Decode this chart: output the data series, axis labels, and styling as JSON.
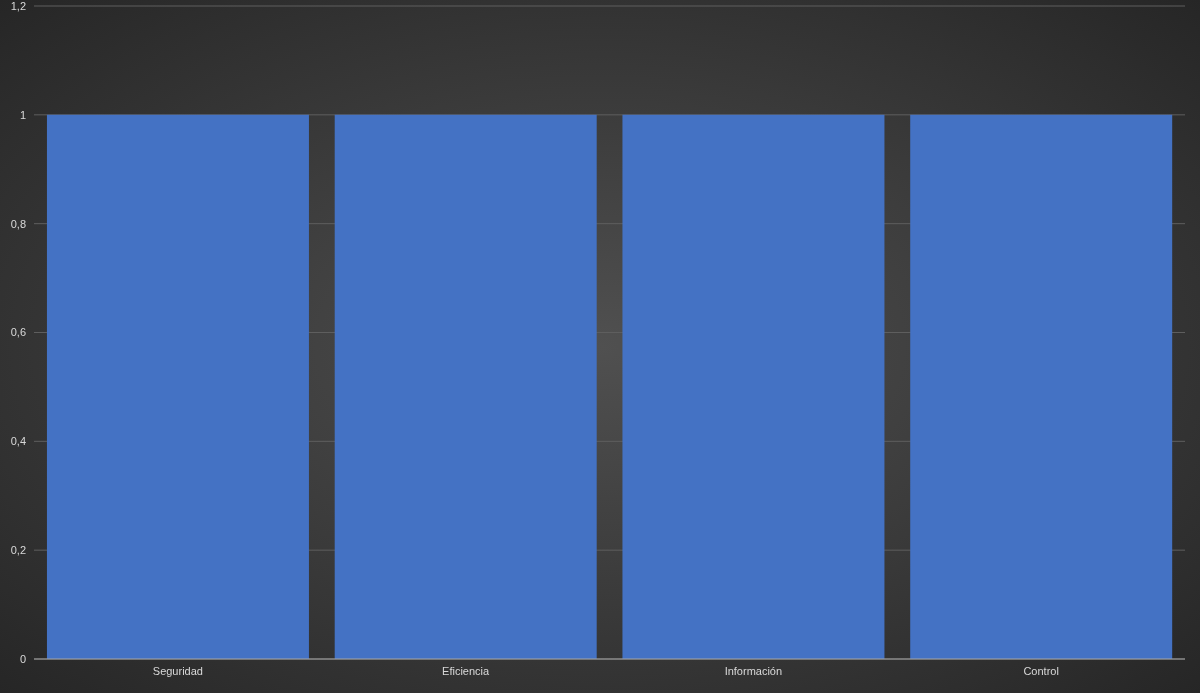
{
  "chart_data": {
    "type": "bar",
    "categories": [
      "Seguridad",
      "Eficiencia",
      "Información",
      "Control"
    ],
    "values": [
      1,
      1,
      1,
      1
    ],
    "color": "#4472c4",
    "ylim": [
      0,
      1.2
    ],
    "yticks": [
      0,
      {
        "value": 0.2,
        "label": "0,2"
      },
      {
        "value": 0.4,
        "label": "0,4"
      },
      {
        "value": 0.6,
        "label": "0,6"
      },
      {
        "value": 0.8,
        "label": "0,8"
      },
      1,
      {
        "value": 1.2,
        "label": "1,2"
      }
    ],
    "grid": "y"
  }
}
